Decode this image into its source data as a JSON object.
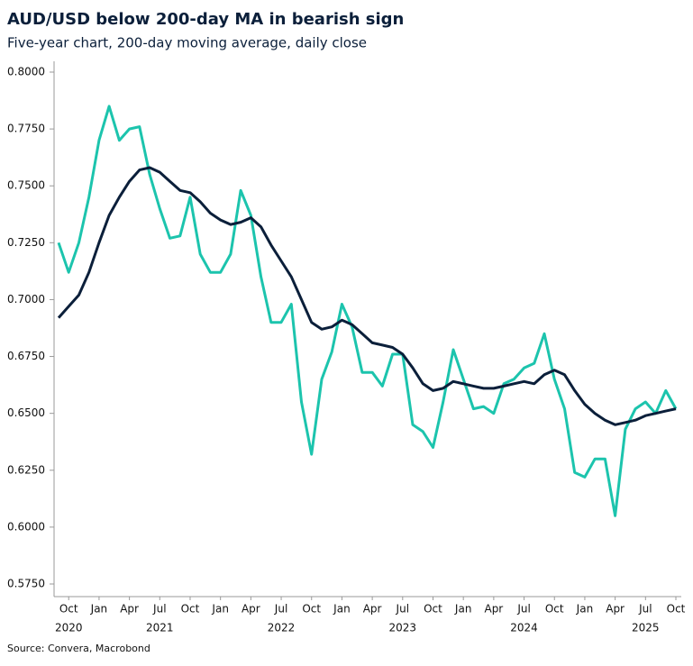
{
  "chart_data": {
    "type": "line",
    "title": "AUD/USD below 200-day MA in bearish sign",
    "subtitle": "Five-year chart, 200-day moving average, daily close",
    "source": "Source: Convera, Macrobond",
    "x": [
      "2020-09",
      "2020-10",
      "2020-11",
      "2020-12",
      "2021-01",
      "2021-02",
      "2021-03",
      "2021-04",
      "2021-05",
      "2021-06",
      "2021-07",
      "2021-08",
      "2021-09",
      "2021-10",
      "2021-11",
      "2021-12",
      "2022-01",
      "2022-02",
      "2022-03",
      "2022-04",
      "2022-05",
      "2022-06",
      "2022-07",
      "2022-08",
      "2022-09",
      "2022-10",
      "2022-11",
      "2022-12",
      "2023-01",
      "2023-02",
      "2023-03",
      "2023-04",
      "2023-05",
      "2023-06",
      "2023-07",
      "2023-08",
      "2023-09",
      "2023-10",
      "2023-11",
      "2023-12",
      "2024-01",
      "2024-02",
      "2024-03",
      "2024-04",
      "2024-05",
      "2024-06",
      "2024-07",
      "2024-08",
      "2024-09",
      "2024-10",
      "2024-11",
      "2024-12",
      "2025-01",
      "2025-02",
      "2025-03",
      "2025-04",
      "2025-05",
      "2025-06",
      "2025-07",
      "2025-08",
      "2025-09",
      "2025-10"
    ],
    "series": [
      {
        "color": "#1cc4ad",
        "values": [
          0.725,
          0.712,
          0.725,
          0.745,
          0.77,
          0.785,
          0.77,
          0.775,
          0.776,
          0.755,
          0.74,
          0.727,
          0.728,
          0.745,
          0.72,
          0.712,
          0.712,
          0.72,
          0.748,
          0.737,
          0.71,
          0.69,
          0.69,
          0.698,
          0.655,
          0.632,
          0.665,
          0.677,
          0.698,
          0.688,
          0.668,
          0.668,
          0.662,
          0.676,
          0.676,
          0.645,
          0.642,
          0.635,
          0.655,
          0.678,
          0.665,
          0.652,
          0.653,
          0.65,
          0.663,
          0.665,
          0.67,
          0.672,
          0.685,
          0.665,
          0.652,
          0.624,
          0.622,
          0.63,
          0.63,
          0.605,
          0.643,
          0.652,
          0.655,
          0.65,
          0.66,
          0.652
        ]
      },
      {
        "color": "#0b1f3a",
        "values": [
          0.692,
          0.697,
          0.702,
          0.712,
          0.725,
          0.737,
          0.745,
          0.752,
          0.757,
          0.758,
          0.756,
          0.752,
          0.748,
          0.747,
          0.743,
          0.738,
          0.735,
          0.733,
          0.734,
          0.736,
          0.732,
          0.724,
          0.717,
          0.71,
          0.7,
          0.69,
          0.687,
          0.688,
          0.691,
          0.689,
          0.685,
          0.681,
          0.68,
          0.679,
          0.676,
          0.67,
          0.663,
          0.66,
          0.661,
          0.664,
          0.663,
          0.662,
          0.661,
          0.661,
          0.662,
          0.663,
          0.664,
          0.663,
          0.667,
          0.669,
          0.667,
          0.66,
          0.654,
          0.65,
          0.647,
          0.645,
          0.646,
          0.647,
          0.649,
          0.65,
          0.651,
          0.652
        ]
      }
    ],
    "xlim": [
      "2020-09",
      "2025-10"
    ],
    "xticks": [
      {
        "value": "2020-10",
        "label": "Oct"
      },
      {
        "value": "2021-01",
        "label": "Jan"
      },
      {
        "value": "2021-04",
        "label": "Apr"
      },
      {
        "value": "2021-07",
        "label": "Jul"
      },
      {
        "value": "2021-10",
        "label": "Oct"
      },
      {
        "value": "2022-01",
        "label": "Jan"
      },
      {
        "value": "2022-04",
        "label": "Apr"
      },
      {
        "value": "2022-07",
        "label": "Jul"
      },
      {
        "value": "2022-10",
        "label": "Oct"
      },
      {
        "value": "2023-01",
        "label": "Jan"
      },
      {
        "value": "2023-04",
        "label": "Apr"
      },
      {
        "value": "2023-07",
        "label": "Jul"
      },
      {
        "value": "2023-10",
        "label": "Oct"
      },
      {
        "value": "2024-01",
        "label": "Jan"
      },
      {
        "value": "2024-04",
        "label": "Apr"
      },
      {
        "value": "2024-07",
        "label": "Jul"
      },
      {
        "value": "2024-10",
        "label": "Oct"
      },
      {
        "value": "2025-01",
        "label": "Jan"
      },
      {
        "value": "2025-04",
        "label": "Apr"
      },
      {
        "value": "2025-07",
        "label": "Jul"
      },
      {
        "value": "2025-10",
        "label": "Oct"
      }
    ],
    "x_year_labels": [
      {
        "value": "2020-10",
        "label": "2020"
      },
      {
        "value": "2021-07",
        "label": "2021"
      },
      {
        "value": "2022-07",
        "label": "2022"
      },
      {
        "value": "2023-07",
        "label": "2023"
      },
      {
        "value": "2024-07",
        "label": "2024"
      },
      {
        "value": "2025-07",
        "label": "2025"
      }
    ],
    "ylim": [
      0.575,
      0.8
    ],
    "yticks": [
      {
        "value": 0.575,
        "label": "0.5750"
      },
      {
        "value": 0.6,
        "label": "0.6000"
      },
      {
        "value": 0.625,
        "label": "0.6250"
      },
      {
        "value": 0.65,
        "label": "0.6500"
      },
      {
        "value": 0.675,
        "label": "0.6750"
      },
      {
        "value": 0.7,
        "label": "0.7000"
      },
      {
        "value": 0.725,
        "label": "0.7250"
      },
      {
        "value": 0.75,
        "label": "0.7500"
      },
      {
        "value": 0.775,
        "label": "0.7750"
      },
      {
        "value": 0.8,
        "label": "0.8000"
      }
    ]
  }
}
